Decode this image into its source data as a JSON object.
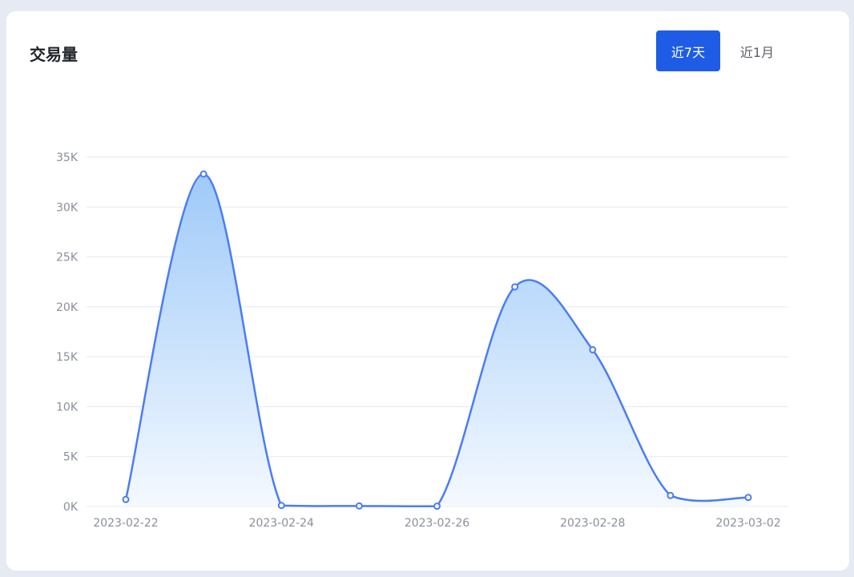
{
  "card": {
    "title": "交易量",
    "tabs": [
      {
        "label": "近7天",
        "active": true
      },
      {
        "label": "近1月",
        "active": false
      }
    ]
  },
  "colors": {
    "page_background": "#e6ebf3",
    "card_background": "#ffffff",
    "accent": "#1f5ce6",
    "line": "#4a7cf5",
    "area_top": "#9fcaf9",
    "area_bottom": "#f4f9ff",
    "grid": "#e3e8f2",
    "axis_label": "#8a8f99"
  },
  "chart_data": {
    "type": "area",
    "title": "",
    "xlabel": "",
    "ylabel": "",
    "x": [
      "2023-02-22",
      "2023-02-23",
      "2023-02-24",
      "2023-02-25",
      "2023-02-26",
      "2023-02-27",
      "2023-02-28",
      "2023-03-01",
      "2023-03-02"
    ],
    "x_tick_labels": [
      "2023-02-22",
      "2023-02-24",
      "2023-02-26",
      "2023-02-28",
      "2023-03-02"
    ],
    "values": [
      700,
      33300,
      100,
      50,
      30,
      22000,
      15700,
      1100,
      900
    ],
    "ylim": [
      0,
      35000
    ],
    "y_ticks": [
      0,
      5000,
      10000,
      15000,
      20000,
      25000,
      30000,
      35000
    ],
    "y_tick_labels": [
      "0K",
      "5K",
      "10K",
      "15K",
      "20K",
      "25K",
      "30K",
      "35K"
    ],
    "smooth": true,
    "markers": true,
    "grid": true,
    "legend": "none"
  }
}
